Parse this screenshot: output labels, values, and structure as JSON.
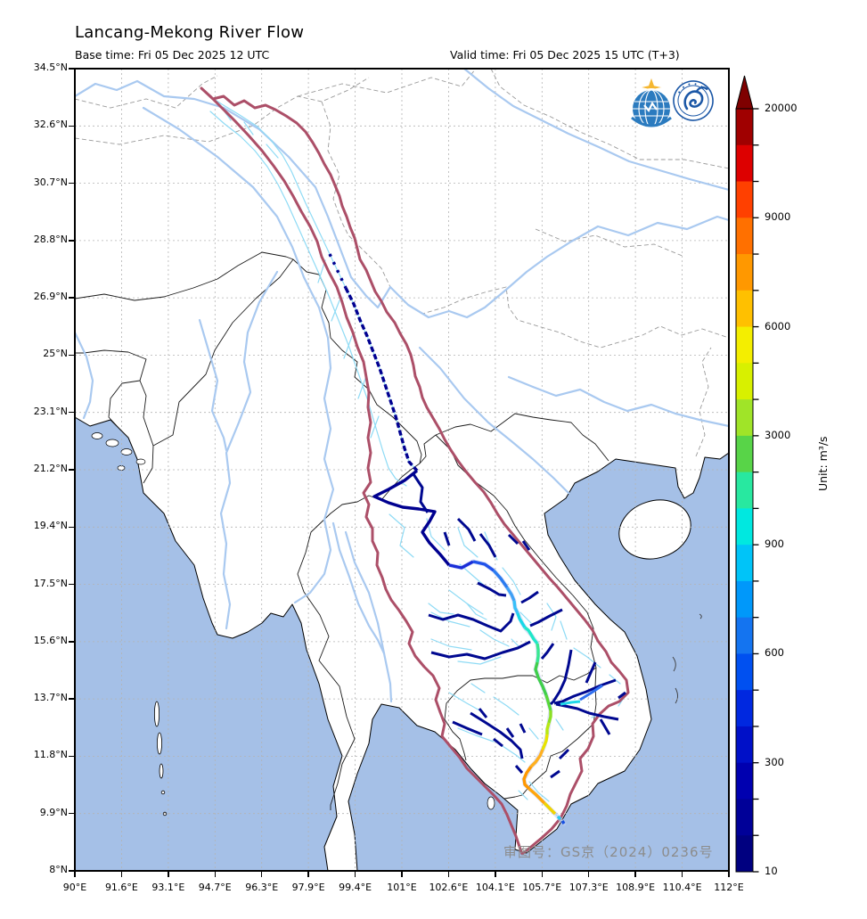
{
  "header": {
    "title": "Lancang-Mekong River Flow",
    "base_time": "Base time: Fri 05 Dec 2025 12 UTC",
    "valid_time": "Valid time: Fri 05 Dec 2025 15 UTC (T+3)"
  },
  "axes": {
    "lon_labels": [
      "90°E",
      "91.6°E",
      "93.1°E",
      "94.7°E",
      "96.3°E",
      "97.9°E",
      "99.4°E",
      "101°E",
      "102.6°E",
      "104.1°E",
      "105.7°E",
      "107.3°E",
      "108.9°E",
      "110.4°E",
      "112°E"
    ],
    "lat_labels": [
      "34.5°N",
      "32.6°N",
      "30.7°N",
      "28.8°N",
      "26.9°N",
      "25°N",
      "23.1°N",
      "21.2°N",
      "19.4°N",
      "17.5°N",
      "15.6°N",
      "13.7°N",
      "11.8°N",
      "9.9°N",
      "8°N"
    ]
  },
  "colorbar": {
    "unit_label": "Unit: m³/s",
    "arrow_color": "#7f0000",
    "segment_colors_top_to_bottom": [
      "#a00000",
      "#dd0000",
      "#ff4000",
      "#ff7000",
      "#ff9800",
      "#ffc000",
      "#f4ee00",
      "#d8f000",
      "#a0e428",
      "#58d448",
      "#28e8a0",
      "#00e8e0",
      "#00c4f8",
      "#0098fa",
      "#1474f0",
      "#0050f0",
      "#0028e0",
      "#0010c8",
      "#0000b0",
      "#000098",
      "#000080"
    ],
    "labeled_ticks": [
      {
        "pos": 0,
        "label": "20000"
      },
      {
        "pos": 3,
        "label": "9000"
      },
      {
        "pos": 6,
        "label": "6000"
      },
      {
        "pos": 9,
        "label": "3000"
      },
      {
        "pos": 12,
        "label": "900"
      },
      {
        "pos": 15,
        "label": "600"
      },
      {
        "pos": 18,
        "label": "300"
      },
      {
        "pos": 21,
        "label": "10"
      }
    ]
  },
  "watermark": {
    "text": "审图号：GS京（2024）0236号"
  },
  "map": {
    "colors": {
      "ocean": "#a5c0e7",
      "land": "#ffffff",
      "coast": "#000000",
      "country_border": "#1a1a1a",
      "province_border": "#9a9a9a",
      "background_river": "#a9c9f0",
      "basin_river_network": "#8fdbf5",
      "basin_outline": "#ac4f68",
      "flow_low": "#000090"
    },
    "logos": [
      "wmo-logo",
      "cma-logo"
    ]
  }
}
